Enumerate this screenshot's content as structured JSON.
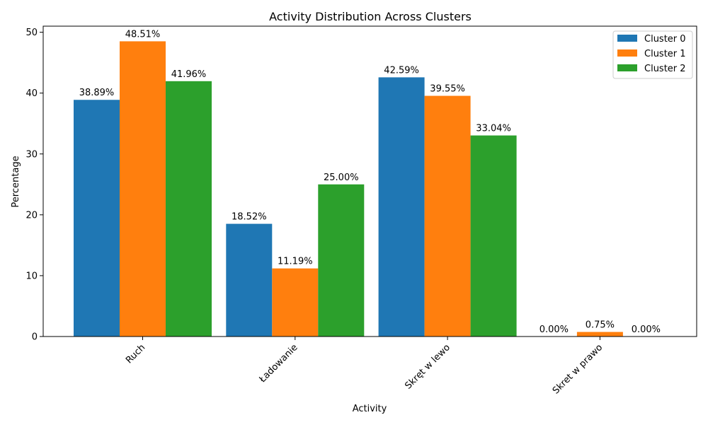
{
  "chart_data": {
    "type": "bar",
    "title": "Activity Distribution Across Clusters",
    "xlabel": "Activity",
    "ylabel": "Percentage",
    "categories": [
      "Ruch",
      "Ładowanie",
      "Skręt w lewo",
      "Skret w prawo"
    ],
    "series": [
      {
        "name": "Cluster 0",
        "color": "#1f77b4",
        "values": [
          38.89,
          18.52,
          42.59,
          0.0
        ],
        "labels": [
          "38.89%",
          "18.52%",
          "42.59%",
          "0.00%"
        ]
      },
      {
        "name": "Cluster 1",
        "color": "#ff7f0e",
        "values": [
          48.51,
          11.19,
          39.55,
          0.75
        ],
        "labels": [
          "48.51%",
          "11.19%",
          "39.55%",
          "0.75%"
        ]
      },
      {
        "name": "Cluster 2",
        "color": "#2ca02c",
        "values": [
          41.96,
          25.0,
          33.04,
          0.0
        ],
        "labels": [
          "41.96%",
          "25.00%",
          "33.04%",
          "0.00%"
        ]
      }
    ],
    "ylim": [
      0,
      51
    ],
    "yticks": [
      0,
      10,
      20,
      30,
      40,
      50
    ],
    "ytick_labels": [
      "0",
      "10",
      "20",
      "30",
      "40",
      "50"
    ],
    "legend_position": "top-right",
    "grid": false
  }
}
